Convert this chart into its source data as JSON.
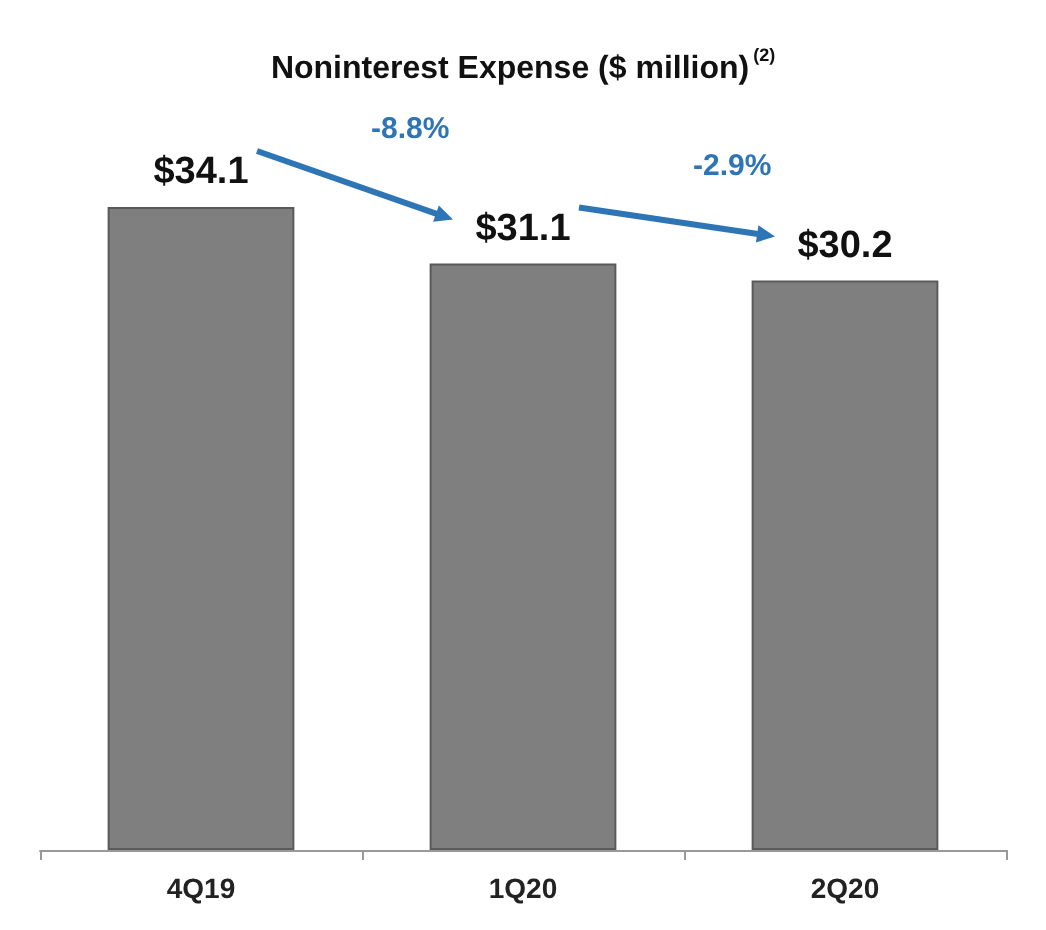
{
  "chart_data": {
    "type": "bar",
    "title": "Noninterest Expense ($ million)$^{(2)}$",
    "categories": [
      "4Q19",
      "1Q20",
      "2Q20"
    ],
    "values": [
      34.1,
      31.1,
      30.2
    ],
    "value_labels": [
      "$34.1",
      "$31.1",
      "$30.2"
    ],
    "color": "#7f7f7f",
    "annotations": [
      "-8.8%",
      "-2.9%"
    ]
  }
}
